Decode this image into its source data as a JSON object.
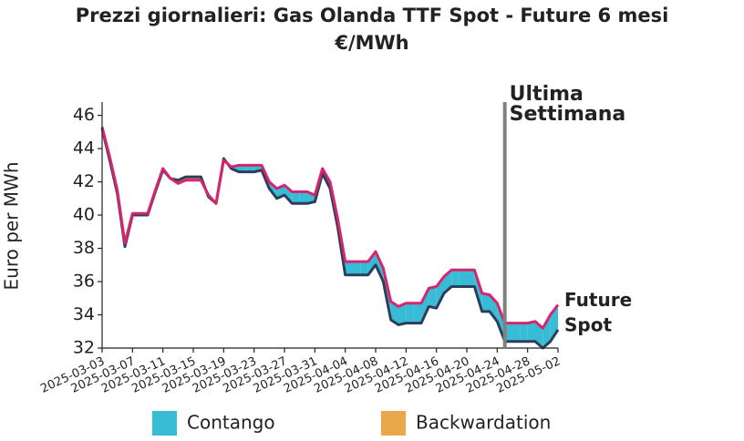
{
  "chart_data": {
    "type": "line",
    "title": "Prezzi giornalieri: Gas Olanda TTF Spot - Future 6 mesi",
    "subtitle": "€/MWh",
    "title_color": "#21b1d2",
    "y_label": "Euro per MWh",
    "x": [
      "2025-03-03",
      "2025-03-04",
      "2025-03-05",
      "2025-03-06",
      "2025-03-07",
      "2025-03-08",
      "2025-03-09",
      "2025-03-10",
      "2025-03-11",
      "2025-03-12",
      "2025-03-13",
      "2025-03-14",
      "2025-03-15",
      "2025-03-16",
      "2025-03-17",
      "2025-03-18",
      "2025-03-19",
      "2025-03-20",
      "2025-03-21",
      "2025-03-22",
      "2025-03-23",
      "2025-03-24",
      "2025-03-25",
      "2025-03-26",
      "2025-03-27",
      "2025-03-28",
      "2025-03-29",
      "2025-03-30",
      "2025-03-31",
      "2025-04-01",
      "2025-04-02",
      "2025-04-03",
      "2025-04-04",
      "2025-04-05",
      "2025-04-06",
      "2025-04-07",
      "2025-04-08",
      "2025-04-09",
      "2025-04-10",
      "2025-04-11",
      "2025-04-12",
      "2025-04-13",
      "2025-04-14",
      "2025-04-15",
      "2025-04-16",
      "2025-04-17",
      "2025-04-18",
      "2025-04-19",
      "2025-04-20",
      "2025-04-21",
      "2025-04-22",
      "2025-04-23",
      "2025-04-24",
      "2025-04-25",
      "2025-04-26",
      "2025-04-27",
      "2025-04-28",
      "2025-04-29",
      "2025-04-30",
      "2025-05-01",
      "2025-05-02"
    ],
    "series": [
      {
        "name": "Future",
        "color": "#d6246e",
        "values": [
          45.3,
          43.5,
          41.5,
          38.3,
          40.1,
          40.1,
          40.1,
          41.5,
          42.8,
          42.2,
          41.9,
          42.1,
          42.1,
          42.1,
          41.2,
          40.7,
          43.3,
          42.9,
          43.0,
          43.0,
          43.0,
          43.0,
          42.0,
          41.6,
          41.8,
          41.4,
          41.4,
          41.4,
          41.2,
          42.8,
          42.0,
          39.8,
          37.2,
          37.2,
          37.2,
          37.2,
          37.8,
          36.8,
          34.8,
          34.5,
          34.7,
          34.7,
          34.7,
          35.6,
          35.7,
          36.3,
          36.7,
          36.7,
          36.7,
          36.7,
          35.3,
          35.2,
          34.7,
          33.5,
          33.5,
          33.5,
          33.5,
          33.6,
          33.2,
          34.0,
          34.6
        ]
      },
      {
        "name": "Spot",
        "color": "#2c3e5c",
        "values": [
          45.2,
          43.3,
          41.3,
          38.1,
          40.0,
          40.0,
          40.0,
          41.4,
          42.7,
          42.2,
          42.1,
          42.3,
          42.3,
          42.3,
          41.1,
          40.7,
          43.4,
          42.8,
          42.6,
          42.6,
          42.6,
          42.7,
          41.6,
          41.0,
          41.2,
          40.7,
          40.7,
          40.7,
          40.8,
          42.5,
          41.6,
          39.3,
          36.4,
          36.4,
          36.4,
          36.4,
          37.0,
          36.0,
          33.7,
          33.4,
          33.5,
          33.5,
          33.5,
          34.5,
          34.4,
          35.3,
          35.7,
          35.7,
          35.7,
          35.7,
          34.2,
          34.2,
          33.6,
          32.4,
          32.4,
          32.4,
          32.4,
          32.4,
          32.0,
          32.4,
          33.1
        ]
      }
    ],
    "fill_legend": [
      {
        "name": "Contango",
        "color": "#38bcd6"
      },
      {
        "name": "Backwardation",
        "color": "#eaa84a"
      }
    ],
    "xlim": [
      "2025-03-03",
      "2025-05-02"
    ],
    "xticks": [
      "2025-03-03",
      "2025-03-07",
      "2025-03-11",
      "2025-03-15",
      "2025-03-19",
      "2025-03-23",
      "2025-03-27",
      "2025-03-31",
      "2025-04-04",
      "2025-04-08",
      "2025-04-12",
      "2025-04-16",
      "2025-04-20",
      "2025-04-24",
      "2025-04-28",
      "2025-05-02"
    ],
    "ylim": [
      32,
      46.8
    ],
    "yticks": [
      32,
      34,
      36,
      38,
      40,
      42,
      44,
      46
    ],
    "annotation": {
      "x": "2025-04-25",
      "lines": [
        "Ultima",
        "Settimana"
      ],
      "color": "#808080"
    }
  }
}
